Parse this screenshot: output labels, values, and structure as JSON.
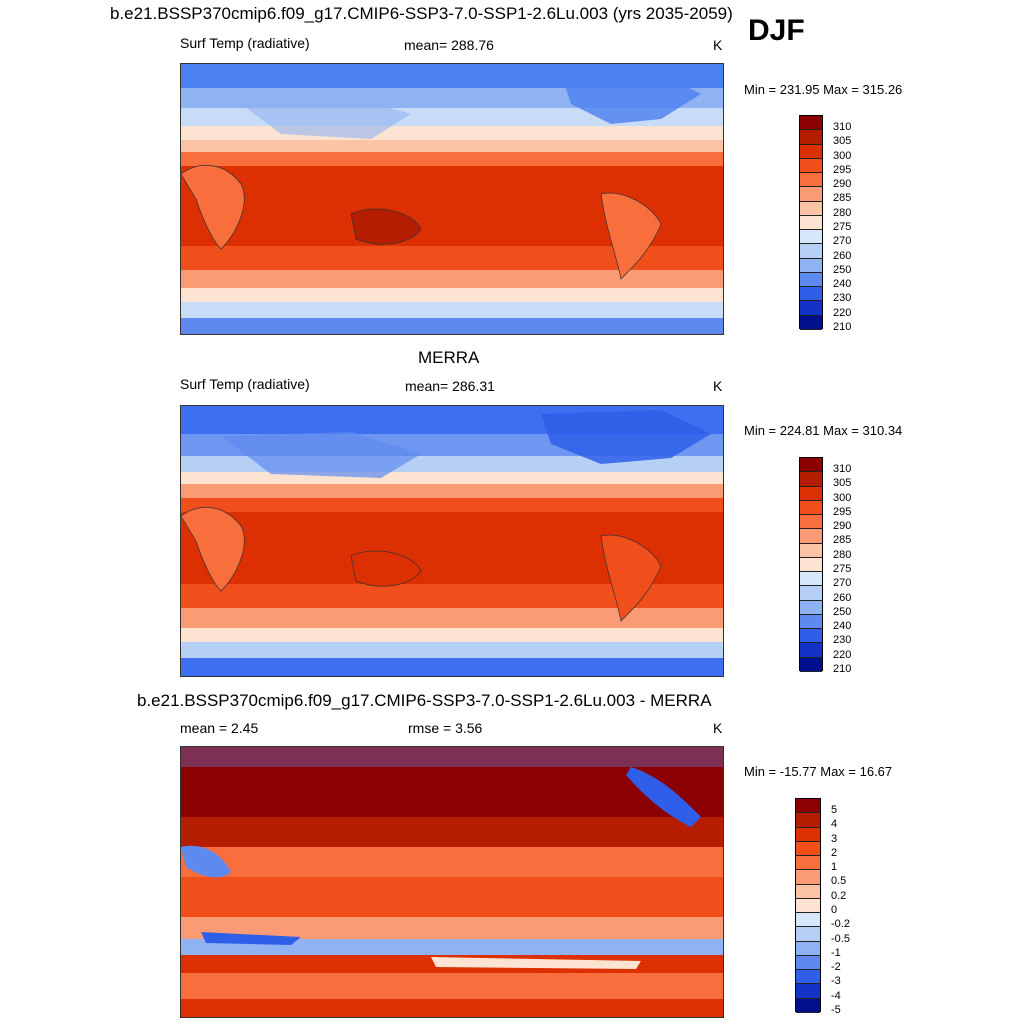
{
  "djf_label": "DJF",
  "panels": [
    {
      "title": "b.e21.BSSP370cmip6.f09_g17.CMIP6-SSP3-7.0-SSP1-2.6Lu.003 (yrs 2035-2059)",
      "left": "Surf Temp (radiative)",
      "center": "mean= 288.76",
      "right": "K",
      "minmax": "Min = 231.95 Max = 315.26",
      "levels": [
        "310",
        "305",
        "300",
        "295",
        "290",
        "285",
        "280",
        "275",
        "270",
        "260",
        "250",
        "240",
        "230",
        "220",
        "210"
      ]
    },
    {
      "title": "MERRA",
      "left": "Surf Temp (radiative)",
      "center": "mean= 286.31",
      "right": "K",
      "minmax": "Min = 224.81 Max = 310.34",
      "levels": [
        "310",
        "305",
        "300",
        "295",
        "290",
        "285",
        "280",
        "275",
        "270",
        "260",
        "250",
        "240",
        "230",
        "220",
        "210"
      ]
    },
    {
      "title": "b.e21.BSSP370cmip6.f09_g17.CMIP6-SSP3-7.0-SSP1-2.6Lu.003 - MERRA",
      "left": "mean =   2.45",
      "center": "rmse =   3.56",
      "right": "K",
      "minmax": "Min = -15.77 Max =  16.67",
      "levels": [
        "5",
        "4",
        "3",
        "2",
        "1",
        "0.5",
        "0.2",
        "0",
        "-0.2",
        "-0.5",
        "-1",
        "-2",
        "-3",
        "-4",
        "-5"
      ]
    }
  ],
  "colorbar_colors": [
    "#8b0000",
    "#b51d00",
    "#dc2f02",
    "#f04e1b",
    "#f86e3c",
    "#fb9b75",
    "#fcc3a6",
    "#fde4d2",
    "#d7e6f8",
    "#b5cff5",
    "#8fb3f2",
    "#5e8af0",
    "#2f5ee8",
    "#1232c8",
    "#000f8c"
  ]
}
